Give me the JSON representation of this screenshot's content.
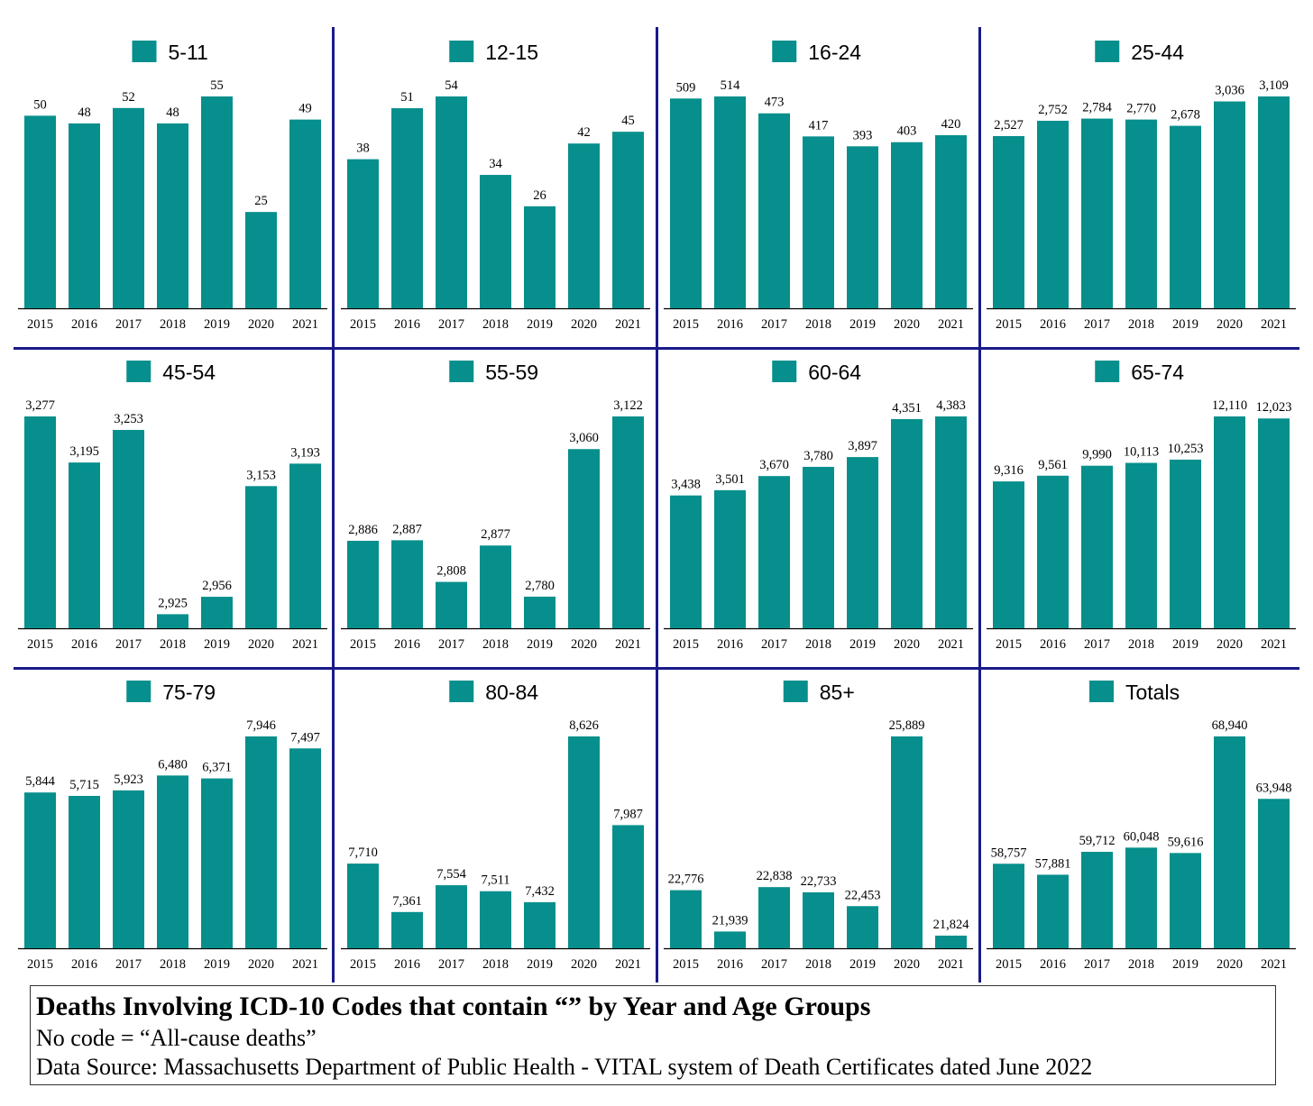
{
  "colors": {
    "bar": "#068F8C",
    "separator": "#1a1a8c",
    "axis": "#000000",
    "text": "#000000"
  },
  "chart_data": [
    {
      "type": "bar",
      "title": "5-11",
      "series": [
        {
          "name": "5-11",
          "values": [
            50,
            48,
            52,
            48,
            55,
            25,
            49
          ],
          "labels": [
            "50",
            "48",
            "52",
            "48",
            "55",
            "25",
            "49"
          ]
        }
      ],
      "categories": [
        "2015",
        "2016",
        "2017",
        "2018",
        "2019",
        "2020",
        "2021"
      ],
      "ylim": [
        0,
        55
      ]
    },
    {
      "type": "bar",
      "title": "12-15",
      "series": [
        {
          "name": "12-15",
          "values": [
            38,
            51,
            54,
            34,
            26,
            42,
            45
          ],
          "labels": [
            "38",
            "51",
            "54",
            "34",
            "26",
            "42",
            "45"
          ]
        }
      ],
      "categories": [
        "2015",
        "2016",
        "2017",
        "2018",
        "2019",
        "2020",
        "2021"
      ],
      "ylim": [
        0,
        54
      ]
    },
    {
      "type": "bar",
      "title": "16-24",
      "series": [
        {
          "name": "16-24",
          "values": [
            509,
            514,
            473,
            417,
            393,
            403,
            420
          ],
          "labels": [
            "509",
            "514",
            "473",
            "417",
            "393",
            "403",
            "420"
          ]
        }
      ],
      "categories": [
        "2015",
        "2016",
        "2017",
        "2018",
        "2019",
        "2020",
        "2021"
      ],
      "ylim": [
        0,
        514
      ]
    },
    {
      "type": "bar",
      "title": "25-44",
      "series": [
        {
          "name": "25-44",
          "values": [
            2527,
            2752,
            2784,
            2770,
            2678,
            3036,
            3109
          ],
          "labels": [
            "2,527",
            "2,752",
            "2,784",
            "2,770",
            "2,678",
            "3,036",
            "3,109"
          ]
        }
      ],
      "categories": [
        "2015",
        "2016",
        "2017",
        "2018",
        "2019",
        "2020",
        "2021"
      ],
      "ylim": [
        0,
        3109
      ]
    },
    {
      "type": "bar",
      "title": "45-54",
      "series": [
        {
          "name": "45-54",
          "values": [
            3277,
            3195,
            3253,
            2925,
            2956,
            3153,
            3193
          ],
          "labels": [
            "3,277",
            "3,195",
            "3,253",
            "2,925",
            "2,956",
            "3,153",
            "3,193"
          ]
        }
      ],
      "categories": [
        "2015",
        "2016",
        "2017",
        "2018",
        "2019",
        "2020",
        "2021"
      ],
      "ylim": [
        2900,
        3277
      ]
    },
    {
      "type": "bar",
      "title": "55-59",
      "series": [
        {
          "name": "55-59",
          "values": [
            2886,
            2887,
            2808,
            2877,
            2780,
            3060,
            3122
          ],
          "labels": [
            "2,886",
            "2,887",
            "2,808",
            "2,877",
            "2,780",
            "3,060",
            "3,122"
          ]
        }
      ],
      "categories": [
        "2015",
        "2016",
        "2017",
        "2018",
        "2019",
        "2020",
        "2021"
      ],
      "ylim": [
        2720,
        3122
      ]
    },
    {
      "type": "bar",
      "title": "60-64",
      "series": [
        {
          "name": "60-64",
          "values": [
            3438,
            3501,
            3670,
            3780,
            3897,
            4351,
            4383
          ],
          "labels": [
            "3,438",
            "3,501",
            "3,670",
            "3,780",
            "3,897",
            "4,351",
            "4,383"
          ]
        }
      ],
      "categories": [
        "2015",
        "2016",
        "2017",
        "2018",
        "2019",
        "2020",
        "2021"
      ],
      "ylim": [
        1850,
        4383
      ]
    },
    {
      "type": "bar",
      "title": "65-74",
      "series": [
        {
          "name": "65-74",
          "values": [
            9316,
            9561,
            9990,
            10113,
            10253,
            12110,
            12023
          ],
          "labels": [
            "9,316",
            "9,561",
            "9,990",
            "10,113",
            "10,253",
            "12,110",
            "12,023"
          ]
        }
      ],
      "categories": [
        "2015",
        "2016",
        "2017",
        "2018",
        "2019",
        "2020",
        "2021"
      ],
      "ylim": [
        3000,
        12110
      ]
    },
    {
      "type": "bar",
      "title": "75-79",
      "series": [
        {
          "name": "75-79",
          "values": [
            5844,
            5715,
            5923,
            6480,
            6371,
            7946,
            7497
          ],
          "labels": [
            "5,844",
            "5,715",
            "5,923",
            "6,480",
            "6,371",
            "7,946",
            "7,497"
          ]
        }
      ],
      "categories": [
        "2015",
        "2016",
        "2017",
        "2018",
        "2019",
        "2020",
        "2021"
      ],
      "ylim": [
        0,
        7946
      ]
    },
    {
      "type": "bar",
      "title": "80-84",
      "series": [
        {
          "name": "80-84",
          "values": [
            7710,
            7361,
            7554,
            7511,
            7432,
            8626,
            7987
          ],
          "labels": [
            "7,710",
            "7,361",
            "7,554",
            "7,511",
            "7,432",
            "8,626",
            "7,987"
          ]
        }
      ],
      "categories": [
        "2015",
        "2016",
        "2017",
        "2018",
        "2019",
        "2020",
        "2021"
      ],
      "ylim": [
        7100,
        8626
      ]
    },
    {
      "type": "bar",
      "title": "85+",
      "series": [
        {
          "name": "85+",
          "values": [
            22776,
            21939,
            22838,
            22733,
            22453,
            25889,
            21824
          ],
          "labels": [
            "22,776",
            "21,939",
            "22,838",
            "22,733",
            "22,453",
            "25,889",
            "21,824"
          ]
        }
      ],
      "categories": [
        "2015",
        "2016",
        "2017",
        "2018",
        "2019",
        "2020",
        "2021"
      ],
      "ylim": [
        21600,
        25889
      ]
    },
    {
      "type": "bar",
      "title": "Totals",
      "series": [
        {
          "name": "Totals",
          "values": [
            58757,
            57881,
            59712,
            60048,
            59616,
            68940,
            63948
          ],
          "labels": [
            "58,757",
            "57,881",
            "59,712",
            "60,048",
            "59,616",
            "68,940",
            "63,948"
          ]
        }
      ],
      "categories": [
        "2015",
        "2016",
        "2017",
        "2018",
        "2019",
        "2020",
        "2021"
      ],
      "ylim": [
        52000,
        68940
      ]
    }
  ],
  "footer": {
    "title": "Deaths Involving ICD-10 Codes that contain “” by Year and Age Groups",
    "note": "No code = “All-cause deaths”",
    "source": "Data Source:  Massachusetts Department of Public Health - VITAL system of Death Certificates dated June 2022"
  }
}
